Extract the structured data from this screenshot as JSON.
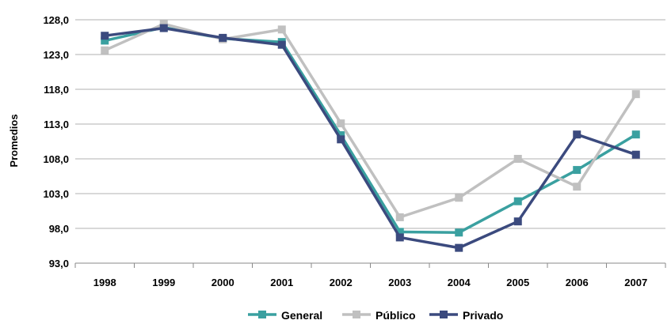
{
  "chart_data": {
    "type": "line",
    "title": "",
    "xlabel": "",
    "ylabel": "Promedios",
    "x": [
      "1998",
      "1999",
      "2000",
      "2001",
      "2002",
      "2003",
      "2004",
      "2005",
      "2006",
      "2007"
    ],
    "y_ticks": [
      "93,0",
      "98,0",
      "103,0",
      "108,0",
      "113,0",
      "118,0",
      "123,0",
      "128,0"
    ],
    "ylim": [
      93,
      128
    ],
    "grid": "horizontal",
    "legend": "bottom",
    "series": [
      {
        "name": "General",
        "color": "#3aa0a0",
        "values": [
          125.0,
          126.9,
          125.3,
          124.8,
          111.4,
          97.5,
          97.4,
          101.9,
          106.4,
          111.5
        ]
      },
      {
        "name": "Público",
        "color": "#c0c0c0",
        "values": [
          123.6,
          127.4,
          125.2,
          126.6,
          113.1,
          99.6,
          102.4,
          108.0,
          104.0,
          117.3
        ]
      },
      {
        "name": "Privado",
        "color": "#3b4a7e",
        "values": [
          125.7,
          126.8,
          125.4,
          124.4,
          110.8,
          96.7,
          95.2,
          99.0,
          111.5,
          108.6
        ]
      }
    ]
  }
}
